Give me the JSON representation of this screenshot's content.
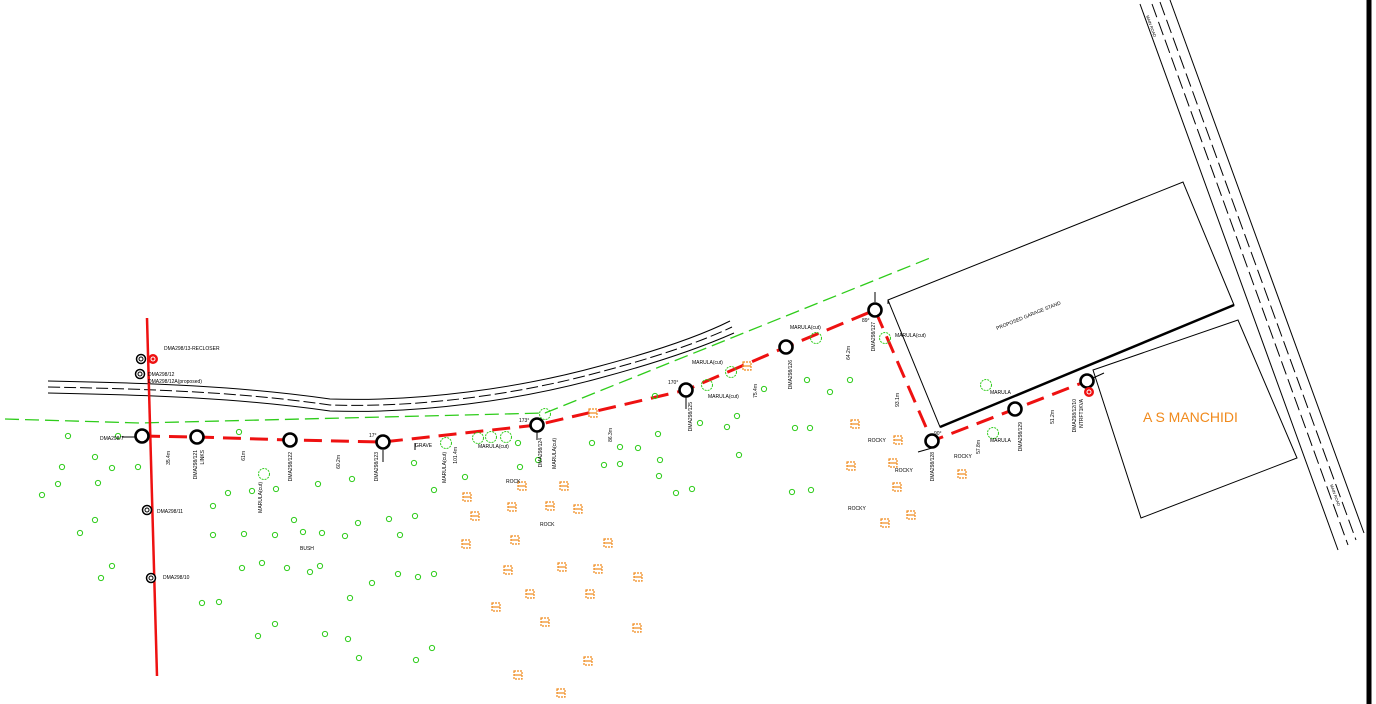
{
  "labels": [
    "DMA298/13-RECLOSER",
    "DMA298/12",
    "DMA298/12A(proposed)",
    "DMA298/7",
    "DMA298/11",
    "DMA298/10",
    "35.4m",
    "DMA298/121",
    "LINKS",
    "61m",
    "MARULA(cut)",
    "DMA298/122",
    "60.2m",
    "17°",
    "DMA298/123",
    "GRAVE",
    "MARULA(cut)",
    "101.4m",
    "MARULA(cut)",
    "173°",
    "DMA298/124",
    "MARULA(cut)",
    "ROCK",
    "ROCK",
    "BUSH",
    "86.3m",
    "170°",
    "DMA298/125",
    "MARULA(cut)",
    "MARULA(cut)",
    "75.4m",
    "MARULA(cut)",
    "DMA298/126",
    "64.2m",
    "89°",
    "DMA298/127",
    "MARULA(cut)",
    "93.1m",
    "ROCKY",
    "ROCKY",
    "ROCKY",
    "ROCKY",
    "90°",
    "DMA298/128",
    "57.8m",
    "MARULA",
    "MARULA",
    "DMA298/129",
    "51.2m",
    "DMA298/12/10",
    "NTRFT1KVA",
    "PROPOSED GARAGE STAND",
    "A S MANCHIDI",
    "MAIN ROAD",
    "MAIN ROAD"
  ]
}
